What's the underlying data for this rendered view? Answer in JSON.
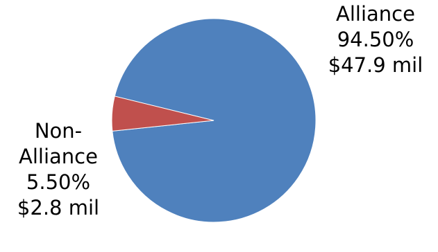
{
  "chart_data": {
    "type": "pie",
    "slices": [
      {
        "name_line1": "Alliance",
        "name_line2": "",
        "percent_label": "94.50%",
        "amount_label": "$47.9 mil",
        "value": 94.5,
        "color": "#4F81BD"
      },
      {
        "name_line1": "Non-",
        "name_line2": "Alliance",
        "percent_label": "5.50%",
        "amount_label": "$2.8 mil",
        "value": 5.5,
        "color": "#C0504D"
      }
    ],
    "legend": false
  }
}
